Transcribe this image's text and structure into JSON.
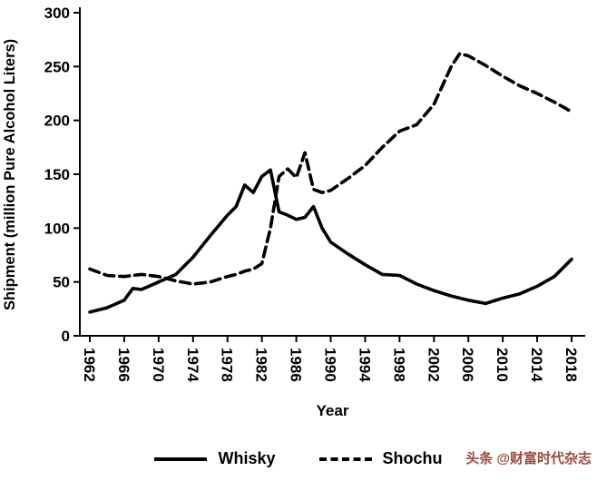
{
  "page": {
    "background": "#ffffff"
  },
  "watermark": {
    "text": "头条 @财富时代杂志",
    "color": "#9c4a3c"
  },
  "legend": {
    "items": [
      {
        "label": "Whisky",
        "line_style": "solid"
      },
      {
        "label": "Shochu",
        "line_style": "dashed"
      }
    ]
  },
  "chart_data": {
    "type": "line",
    "title": "",
    "xlabel": "Year",
    "ylabel": "Shipment (million Pure Alcohol Liters)",
    "xlim": [
      1962,
      2018
    ],
    "ylim": [
      0,
      300
    ],
    "yticks": [
      0,
      50,
      100,
      150,
      200,
      250,
      300
    ],
    "xticks": [
      1962,
      1966,
      1970,
      1974,
      1978,
      1982,
      1986,
      1990,
      1994,
      1998,
      2002,
      2006,
      2010,
      2014,
      2018
    ],
    "grid": false,
    "legend_position": "bottom",
    "line_color": "#000000",
    "x": [
      1962,
      1964,
      1966,
      1967,
      1968,
      1970,
      1972,
      1974,
      1976,
      1978,
      1979,
      1980,
      1981,
      1982,
      1983,
      1984,
      1985,
      1986,
      1987,
      1988,
      1989,
      1990,
      1992,
      1994,
      1996,
      1998,
      2000,
      2002,
      2004,
      2005,
      2006,
      2008,
      2010,
      2012,
      2014,
      2016,
      2018
    ],
    "series": [
      {
        "name": "Whisky",
        "style": "solid",
        "values": [
          22,
          26,
          33,
          44,
          43,
          50,
          57,
          73,
          93,
          112,
          120,
          140,
          133,
          148,
          154,
          115,
          112,
          108,
          110,
          120,
          100,
          87,
          76,
          66,
          57,
          56,
          48,
          42,
          37,
          35,
          33,
          30,
          35,
          39,
          46,
          55,
          71
        ]
      },
      {
        "name": "Shochu",
        "style": "dashed",
        "values": [
          62,
          56,
          55,
          56,
          57,
          55,
          51,
          48,
          50,
          55,
          57,
          60,
          62,
          67,
          100,
          148,
          155,
          147,
          170,
          136,
          133,
          135,
          146,
          158,
          175,
          190,
          196,
          215,
          250,
          262,
          260,
          251,
          241,
          232,
          225,
          217,
          208
        ]
      }
    ]
  }
}
